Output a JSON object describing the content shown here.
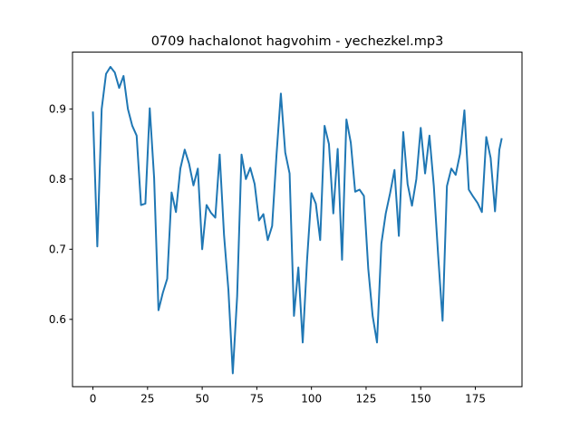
{
  "chart_data": {
    "type": "line",
    "title": "0709 hachalonot hagvohim - yechezkel.mp3",
    "xlabel": "",
    "ylabel": "",
    "xlim": [
      -9.35,
      196.35
    ],
    "ylim": [
      0.504,
      0.981
    ],
    "xticks": [
      0,
      25,
      50,
      75,
      100,
      125,
      150,
      175
    ],
    "xtick_labels": [
      "0",
      "25",
      "50",
      "75",
      "100",
      "125",
      "150",
      "175"
    ],
    "yticks": [
      0.6,
      0.7,
      0.8,
      0.9
    ],
    "ytick_labels": [
      "0.6",
      "0.7",
      "0.8",
      "0.9"
    ],
    "grid": false,
    "legend": "none",
    "series": [
      {
        "color": "#1f77b4",
        "x": [
          0,
          2,
          4,
          6,
          8,
          10,
          12,
          14,
          16,
          18,
          20,
          22,
          24,
          26,
          28,
          30,
          32,
          34,
          36,
          38,
          40,
          42,
          44,
          46,
          48,
          50,
          52,
          54,
          56,
          58,
          60,
          62,
          64,
          66,
          68,
          70,
          72,
          74,
          76,
          78,
          80,
          82,
          84,
          86,
          88,
          90,
          92,
          94,
          96,
          98,
          100,
          102,
          104,
          106,
          108,
          110,
          112,
          114,
          116,
          118,
          120,
          122,
          124,
          126,
          128,
          130,
          132,
          134,
          136,
          138,
          140,
          142,
          144,
          146,
          148,
          150,
          152,
          154,
          156,
          158,
          160,
          162,
          164,
          166,
          168,
          170,
          172,
          174,
          176,
          178,
          180,
          182,
          184,
          186,
          187
        ],
        "y": [
          0.895,
          0.704,
          0.9,
          0.95,
          0.96,
          0.952,
          0.93,
          0.947,
          0.9,
          0.876,
          0.862,
          0.763,
          0.765,
          0.901,
          0.802,
          0.613,
          0.638,
          0.658,
          0.781,
          0.753,
          0.815,
          0.842,
          0.822,
          0.791,
          0.815,
          0.7,
          0.763,
          0.752,
          0.745,
          0.835,
          0.72,
          0.642,
          0.523,
          0.633,
          0.835,
          0.8,
          0.816,
          0.793,
          0.741,
          0.75,
          0.713,
          0.733,
          0.834,
          0.922,
          0.838,
          0.808,
          0.605,
          0.674,
          0.567,
          0.685,
          0.78,
          0.765,
          0.713,
          0.876,
          0.85,
          0.751,
          0.843,
          0.685,
          0.885,
          0.852,
          0.782,
          0.785,
          0.776,
          0.672,
          0.605,
          0.567,
          0.708,
          0.751,
          0.78,
          0.813,
          0.719,
          0.867,
          0.793,
          0.762,
          0.8,
          0.873,
          0.808,
          0.862,
          0.79,
          0.69,
          0.598,
          0.79,
          0.815,
          0.806,
          0.836,
          0.898,
          0.785,
          0.775,
          0.766,
          0.753,
          0.86,
          0.83,
          0.754,
          0.842,
          0.857
        ]
      }
    ]
  }
}
